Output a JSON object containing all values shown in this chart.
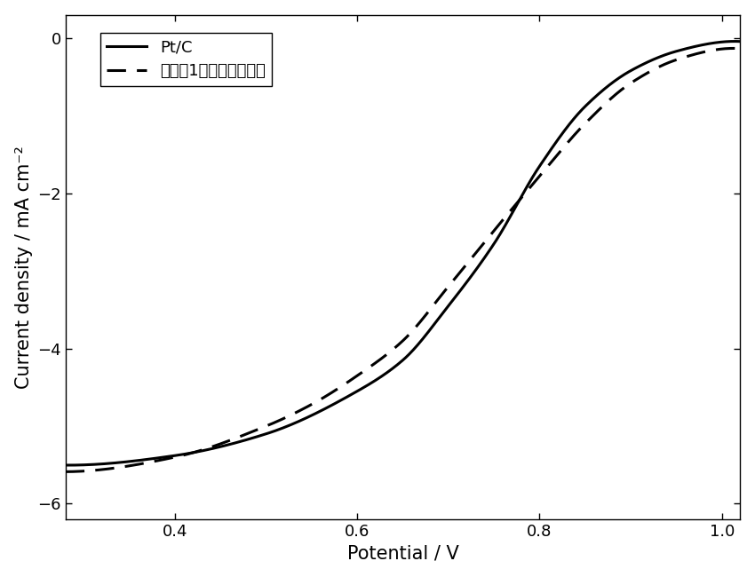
{
  "xlabel": "Potential / V",
  "ylabel": "Current density / mA cm⁻²",
  "xlim": [
    0.28,
    1.02
  ],
  "ylim": [
    -6.2,
    0.3
  ],
  "xticks": [
    0.4,
    0.6,
    0.8,
    1.0
  ],
  "yticks": [
    0,
    -2,
    -4,
    -6
  ],
  "legend_solid": "Pt/C",
  "legend_dashed": "实施例1中所制备催化剑",
  "background_color": "#ffffff",
  "line_color": "#000000",
  "fontsize_axis_label": 15,
  "fontsize_tick": 13,
  "fontsize_legend": 13
}
